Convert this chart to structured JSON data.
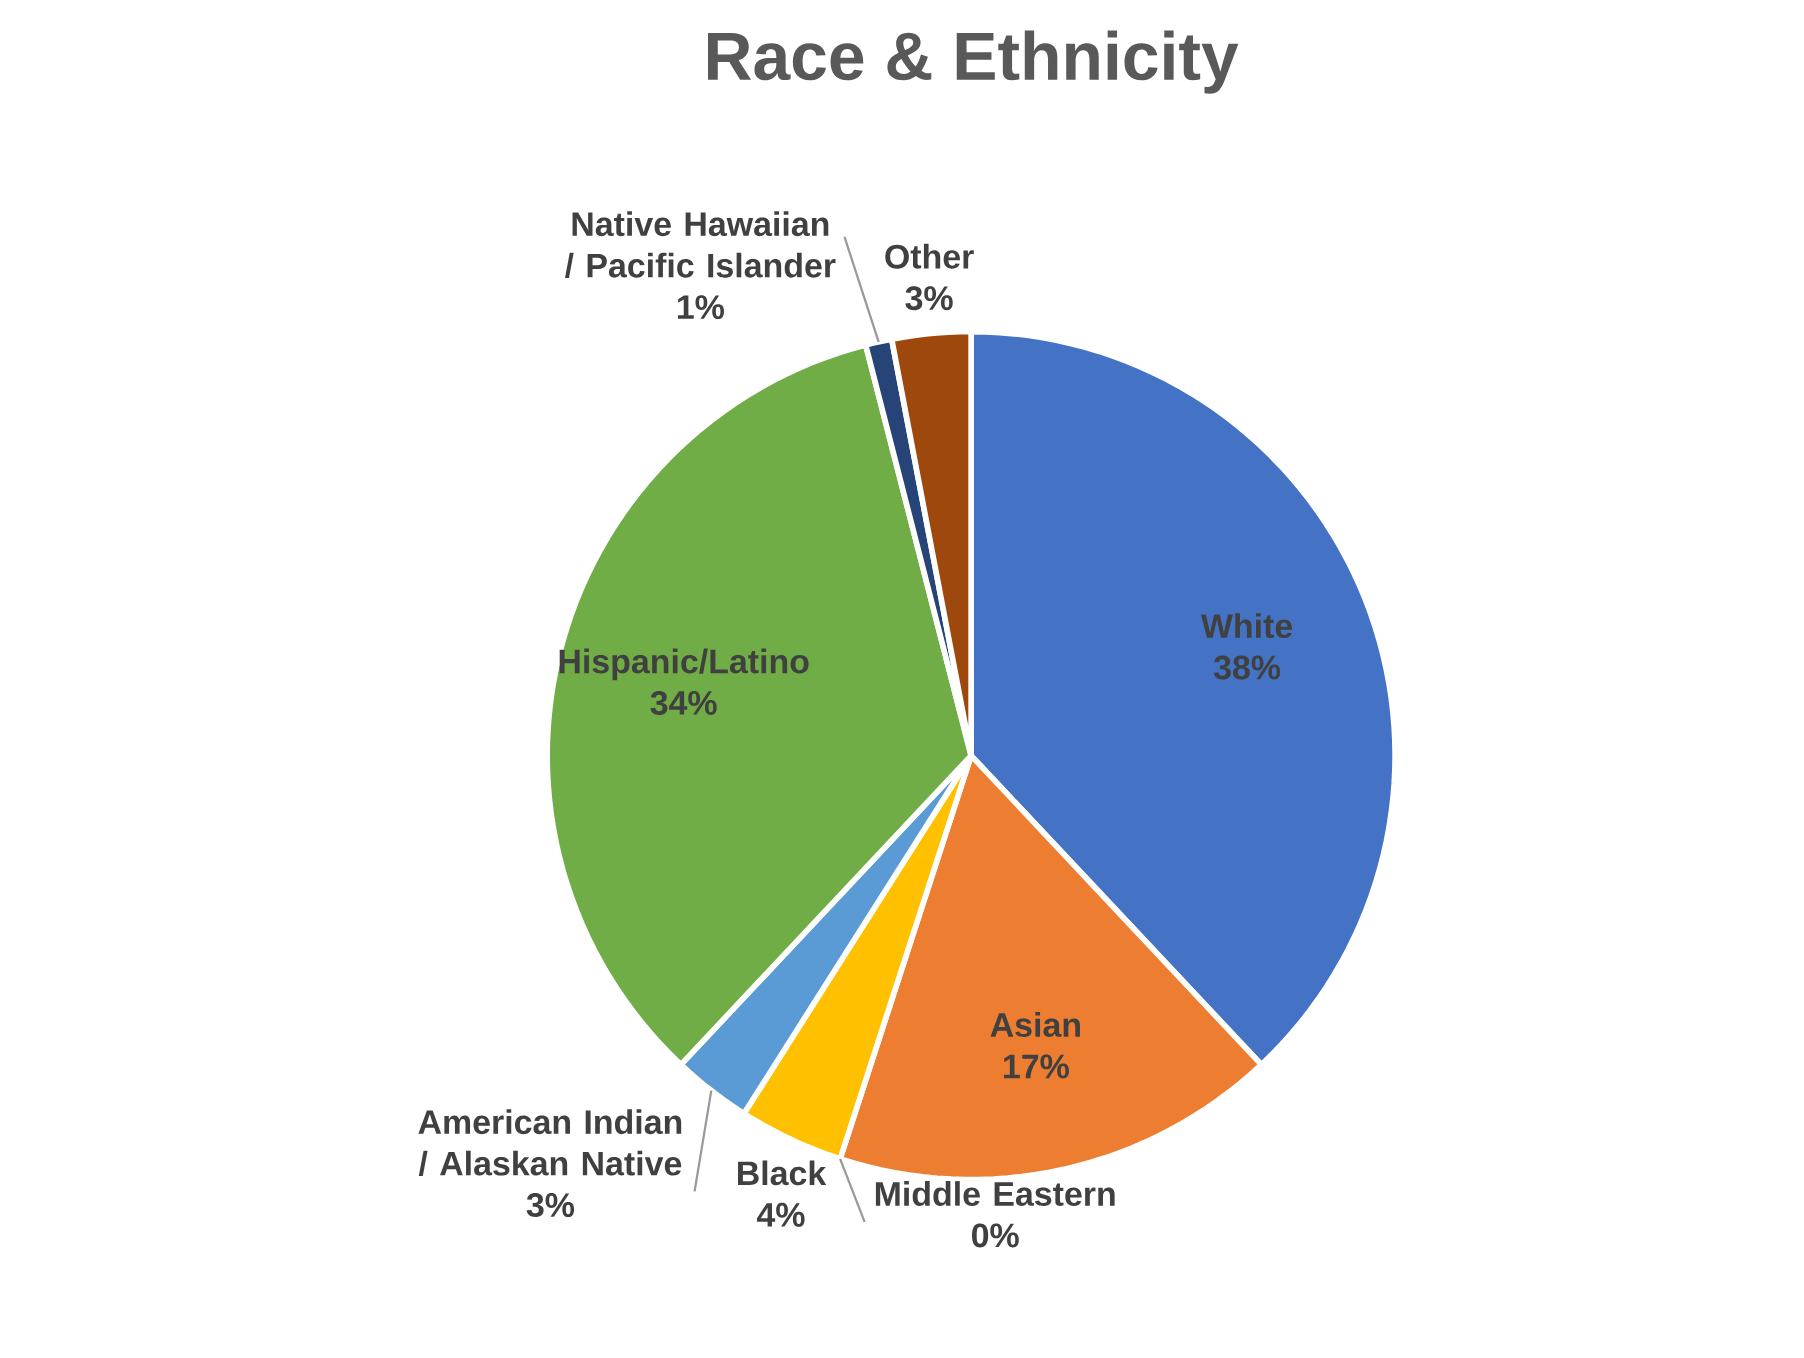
{
  "chart_data": {
    "type": "pie",
    "title": "Race & Ethnicity",
    "categories": [
      "White",
      "Asian",
      "Middle Eastern",
      "Black",
      "American Indian / Alaskan Native",
      "Hispanic/Latino",
      "Native Hawaiian / Pacific Islander",
      "Other"
    ],
    "values": [
      38,
      17,
      0,
      4,
      3,
      34,
      1,
      3
    ],
    "value_labels": [
      "38%",
      "17%",
      "0%",
      "4%",
      "3%",
      "34%",
      "1%",
      "3%"
    ],
    "colors": [
      "#4472c4",
      "#ed7d31",
      "#a5a5a5",
      "#ffc000",
      "#5b9bd5",
      "#70ad47",
      "#264478",
      "#9e480e"
    ]
  }
}
